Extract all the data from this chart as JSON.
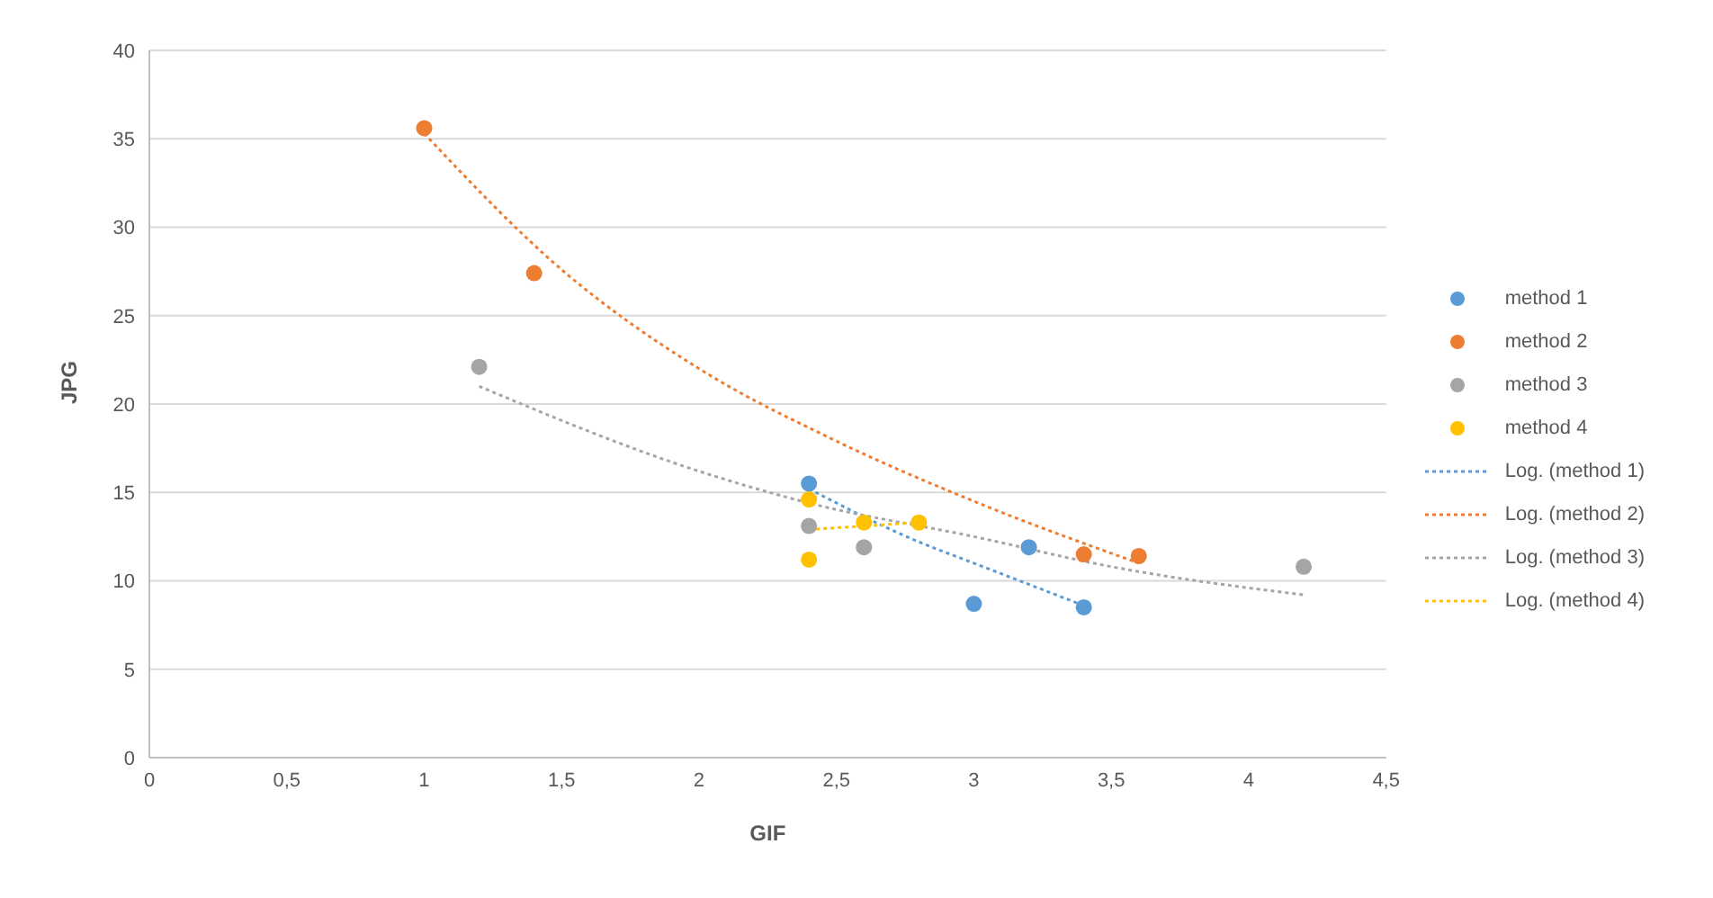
{
  "chart_data": {
    "type": "scatter",
    "xlabel": "GIF",
    "ylabel": "JPG",
    "xlim": [
      0,
      4.5
    ],
    "xticks": [
      0,
      {
        "value": 0.5,
        "label": "0,5"
      },
      1,
      {
        "value": 1.5,
        "label": "1,5"
      },
      2,
      {
        "value": 2.5,
        "label": "2,5"
      },
      3,
      {
        "value": 3.5,
        "label": "3,5"
      },
      4,
      {
        "value": 4.5,
        "label": "4,5"
      }
    ],
    "ylim": [
      0,
      40
    ],
    "yticks": [
      0,
      5,
      10,
      15,
      20,
      25,
      30,
      35,
      40
    ],
    "grid": "y",
    "legend": "right",
    "series": [
      {
        "name": "method 1",
        "marker": "circle",
        "color": "#5b9bd5",
        "x": [
          2.4,
          3,
          3.2,
          3.4
        ],
        "values": [
          15.5,
          8.7,
          11.9,
          8.5
        ]
      },
      {
        "name": "method 2",
        "marker": "circle",
        "color": "#ed7d31",
        "x": [
          1,
          1.4,
          3.4,
          3.6
        ],
        "values": [
          35.6,
          27.4,
          11.5,
          11.4
        ]
      },
      {
        "name": "method 3",
        "marker": "circle",
        "color": "#a5a5a5",
        "x": [
          1.2,
          2.4,
          2.6,
          4.2
        ],
        "values": [
          22.1,
          13.1,
          11.9,
          10.8
        ]
      },
      {
        "name": "method 4",
        "marker": "circle",
        "color": "#ffc000",
        "x": [
          2.4,
          2.4,
          2.6,
          2.8
        ],
        "values": [
          14.6,
          11.2,
          13.3,
          13.3
        ]
      },
      {
        "name": "Log. (method 1)",
        "type": "line",
        "marker": "none",
        "line_style": "dotted",
        "color": "#5b9bd5",
        "x": [
          2.4,
          2.8,
          3,
          3.4
        ],
        "values": [
          15.2,
          12.2,
          11,
          8.6
        ]
      },
      {
        "name": "Log. (method 2)",
        "type": "line",
        "marker": "none",
        "line_style": "dotted",
        "color": "#ed7d31",
        "x": [
          1,
          1.5,
          2,
          2.5,
          3,
          3.6
        ],
        "values": [
          35.3,
          27.6,
          22,
          17.9,
          14.5,
          11
        ]
      },
      {
        "name": "Log. (method 3)",
        "type": "line",
        "marker": "none",
        "line_style": "dotted",
        "color": "#a5a5a5",
        "x": [
          1.2,
          2,
          2.4,
          3,
          3.5,
          4.2
        ],
        "values": [
          21,
          16.2,
          14.4,
          12.5,
          10.8,
          9.2
        ]
      },
      {
        "name": "Log. (method 4)",
        "type": "line",
        "marker": "none",
        "line_style": "dotted",
        "color": "#ffc000",
        "x": [
          2.4,
          2.6,
          2.8
        ],
        "values": [
          12.9,
          13.1,
          13.3
        ]
      }
    ]
  }
}
